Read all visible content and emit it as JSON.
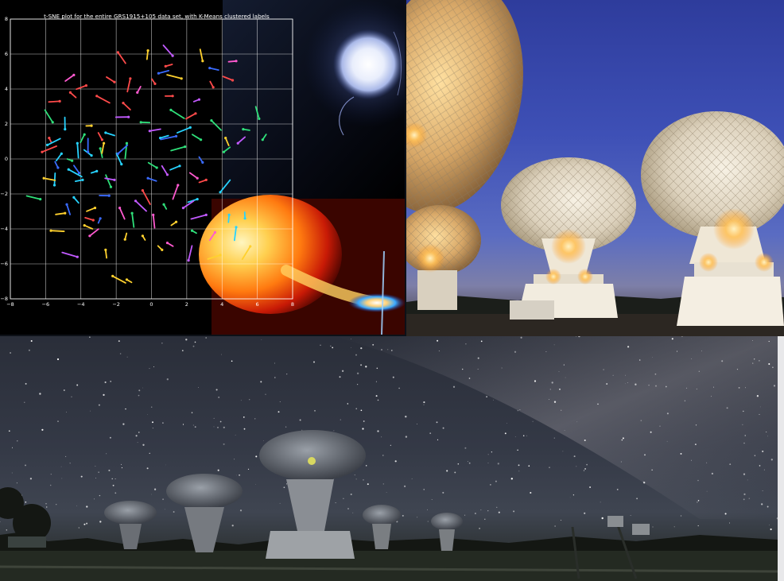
{
  "collage": {
    "panels": [
      {
        "name": "tsne-plot-panel",
        "content": "t-SNE scatter plot over astrophysics artwork"
      },
      {
        "name": "radio-dishes-dusk-panel",
        "content": "radio telescope dishes lit at dusk"
      },
      {
        "name": "radio-dishes-night-panel",
        "content": "radio telescope array under the Milky Way"
      }
    ],
    "colors": {
      "plot_bg": "#000000",
      "dusk_sky": "#3e50b6",
      "night_sky": "#343946",
      "dish_white": "#e6dfd2",
      "lamp_glow": "#ffc25a"
    }
  },
  "chart_data": {
    "type": "scatter",
    "title": "t-SNE plot for the entire GRS1915+105 data set, with K-Means clustered labels",
    "xlabel": "",
    "ylabel": "",
    "xlim": [
      -8,
      8
    ],
    "ylim": [
      -8,
      8
    ],
    "xticks": [
      "−8",
      "−6",
      "−4",
      "−2",
      "0",
      "2",
      "4",
      "6",
      "8"
    ],
    "yticks": [
      "8",
      "6",
      "4",
      "2",
      "0",
      "−2",
      "−4",
      "−6",
      "−8"
    ],
    "grid": true,
    "legend": "none",
    "cluster_colors": [
      "#ff4a4a",
      "#27d3ff",
      "#2fe07a",
      "#ffd12e",
      "#c25aff",
      "#ff8a2a",
      "#3a6bff",
      "#ff5ad0",
      "#9aff3a"
    ],
    "series": [
      {
        "color": "#ff4a4a",
        "points": [
          [
            -5.2,
            3.3
          ],
          [
            -4.6,
            3.8
          ],
          [
            -3.7,
            4.2
          ],
          [
            -3.1,
            3.6
          ],
          [
            -2.1,
            4.4
          ],
          [
            -1.2,
            4.6
          ],
          [
            0.2,
            4.3
          ],
          [
            1.2,
            3.6
          ],
          [
            3.5,
            4.1
          ],
          [
            4.6,
            4.5
          ],
          [
            -5.8,
            1.2
          ],
          [
            -6.2,
            0.4
          ],
          [
            -1.6,
            3.2
          ],
          [
            0.8,
            5.3
          ],
          [
            2.5,
            2.6
          ],
          [
            -2.8,
            1.1
          ],
          [
            -0.5,
            -1.8
          ],
          [
            3.1,
            -1.2
          ],
          [
            -3.3,
            -3.5
          ],
          [
            -1.9,
            6.1
          ]
        ]
      },
      {
        "color": "#27d3ff",
        "points": [
          [
            -5.1,
            0.3
          ],
          [
            -4.7,
            -0.6
          ],
          [
            -4.2,
            0.9
          ],
          [
            -3.9,
            -1.2
          ],
          [
            -3.4,
            0.2
          ],
          [
            -5.5,
            -1.5
          ],
          [
            -4.4,
            -2.2
          ],
          [
            -3.1,
            -0.7
          ],
          [
            -2.6,
            1.5
          ],
          [
            -1.7,
            -0.3
          ],
          [
            0.5,
            1.2
          ],
          [
            1.6,
            -0.4
          ],
          [
            2.2,
            1.8
          ],
          [
            2.6,
            -2.3
          ],
          [
            4.4,
            -3.2
          ],
          [
            5.3,
            -3.4
          ],
          [
            4.8,
            -3.9
          ],
          [
            3.9,
            -1.9
          ],
          [
            -5.9,
            0.8
          ],
          [
            -4.9,
            1.7
          ]
        ]
      },
      {
        "color": "#2fe07a",
        "points": [
          [
            -4.5,
            -0.1
          ],
          [
            -3.8,
            1.4
          ],
          [
            -2.9,
            0.6
          ],
          [
            -2.3,
            -1.6
          ],
          [
            -1.4,
            0.9
          ],
          [
            -0.6,
            2.1
          ],
          [
            0.3,
            -0.5
          ],
          [
            1.1,
            2.8
          ],
          [
            1.9,
            0.7
          ],
          [
            2.8,
            1.1
          ],
          [
            3.4,
            2.2
          ],
          [
            4.1,
            0.4
          ],
          [
            5.2,
            1.7
          ],
          [
            6.1,
            2.3
          ],
          [
            -5.6,
            2.1
          ],
          [
            -1.1,
            -3.1
          ],
          [
            0.7,
            -2.6
          ],
          [
            2.3,
            -4.1
          ],
          [
            -6.3,
            -2.3
          ],
          [
            6.3,
            1.1
          ]
        ]
      },
      {
        "color": "#ffd12e",
        "points": [
          [
            -3.4,
            1.9
          ],
          [
            -2.7,
            0.9
          ],
          [
            -3.8,
            -3.8
          ],
          [
            -2.6,
            -5.2
          ],
          [
            -1.5,
            -4.6
          ],
          [
            -0.5,
            -4.4
          ],
          [
            0.6,
            -5.2
          ],
          [
            1.4,
            -3.6
          ],
          [
            -4.9,
            -3.1
          ],
          [
            -5.7,
            -4.1
          ],
          [
            3.9,
            -5.5
          ],
          [
            5.6,
            -5.0
          ],
          [
            2.9,
            5.6
          ],
          [
            -0.2,
            6.2
          ],
          [
            -2.2,
            -6.7
          ],
          [
            -1.4,
            -6.9
          ],
          [
            4.2,
            1.2
          ],
          [
            -6.1,
            -1.1
          ],
          [
            -3.2,
            -2.8
          ],
          [
            1.7,
            4.6
          ]
        ]
      },
      {
        "color": "#c25aff",
        "points": [
          [
            -2.1,
            -1.2
          ],
          [
            -0.9,
            -2.4
          ],
          [
            0.9,
            -0.9
          ],
          [
            1.8,
            -2.8
          ],
          [
            3.1,
            -3.2
          ],
          [
            4.9,
            0.9
          ],
          [
            -1.3,
            2.4
          ],
          [
            2.1,
            -5.8
          ],
          [
            -4.2,
            -5.6
          ],
          [
            1.2,
            5.9
          ],
          [
            2.7,
            3.4
          ],
          [
            -0.1,
            1.6
          ]
        ]
      },
      {
        "color": "#3a6bff",
        "points": [
          [
            -4.1,
            -0.8
          ],
          [
            -3.6,
            0.4
          ],
          [
            -2.4,
            -2.1
          ],
          [
            -1.9,
            0.3
          ],
          [
            -0.2,
            -1.1
          ],
          [
            1.4,
            1.3
          ],
          [
            2.9,
            -0.2
          ],
          [
            -5.3,
            -0.5
          ],
          [
            -4.8,
            -2.6
          ],
          [
            -2.9,
            -3.4
          ],
          [
            0.4,
            4.9
          ],
          [
            3.3,
            5.2
          ]
        ]
      },
      {
        "color": "#ff5ad0",
        "points": [
          [
            -1.8,
            -2.8
          ],
          [
            0.1,
            -3.2
          ],
          [
            1.5,
            -1.5
          ],
          [
            2.6,
            -1.1
          ],
          [
            -0.8,
            3.8
          ],
          [
            3.6,
            -4.2
          ],
          [
            -3.5,
            -4.4
          ],
          [
            0.9,
            -4.8
          ],
          [
            4.8,
            5.6
          ],
          [
            -4.4,
            4.8
          ]
        ]
      }
    ]
  }
}
